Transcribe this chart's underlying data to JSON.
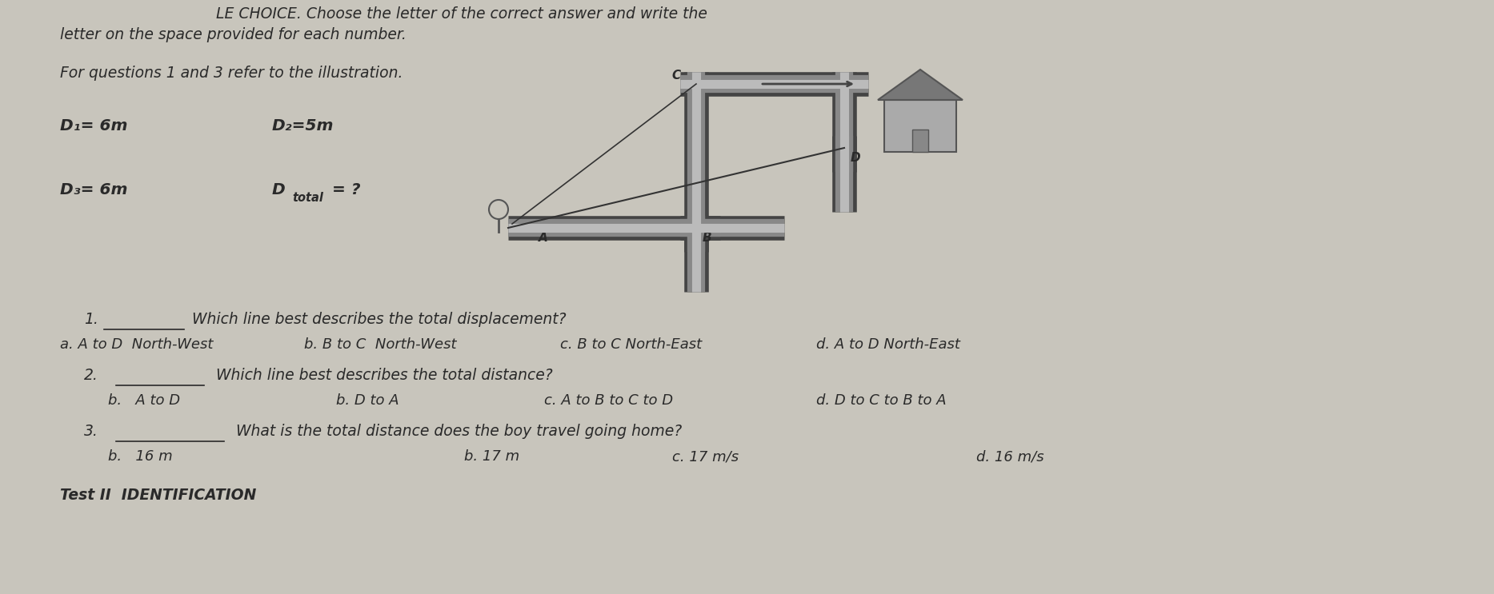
{
  "bg_color": "#c8c5bc",
  "paper_color": "#dddbd3",
  "text_color": "#2a2a2a",
  "title_line1": "LE CHOICE. Choose the letter of the correct answer and write the",
  "title_line2": "letter on the space provided for each number.",
  "for_questions": "For questions 1 and 3 refer to the illustration.",
  "d1_label": "D₁= 6m",
  "d2_label": "D₂=5m",
  "d3_label": "D₃= 6m",
  "dtotal_label": "D total= ?",
  "q1_num": "1.",
  "q1_text": "Which line best describes the total displacement?",
  "q1_a": "a. A to D  North-West",
  "q1_b": "b. B to C  North-West",
  "q1_c": "c. B to C North-East",
  "q1_d": "d. A to D North-East",
  "q2_num": "2.",
  "q2_text": "Which line best describes the total distance?",
  "q2_a": "b.   A to D",
  "q2_b": "b. D to A",
  "q2_c": "c. A to B to C to D",
  "q2_d": "d. D to C to B to A",
  "q3_num": "3.",
  "q3_text": "What is the total distance does the boy travel going home?",
  "q3_a": "b.   16 m",
  "q3_b": "b. 17 m",
  "q3_c": "c. 17 m/s",
  "q3_d": "d. 16 m/s",
  "test2_label": "Test II  IDENTIFICATION",
  "font_size": 13.5
}
